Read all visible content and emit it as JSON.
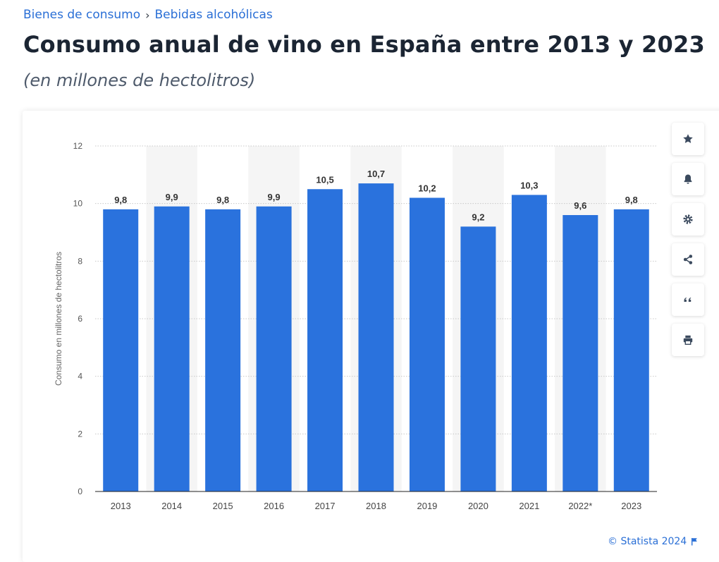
{
  "breadcrumb": {
    "items": [
      "Bienes de consumo",
      "Bebidas alcohólicas"
    ],
    "separator": "›"
  },
  "header": {
    "title": "Consumo anual de vino en España entre 2013 y 2023",
    "subtitle": "(en millones de hectolitros)"
  },
  "toolbar": {
    "icons": [
      "star-icon",
      "bell-icon",
      "gear-icon",
      "share-icon",
      "quote-icon",
      "print-icon"
    ]
  },
  "credit": {
    "text": "© Statista 2024"
  },
  "colors": {
    "bar": "#2a72dd",
    "band": "#f5f5f5",
    "link": "#2a6fd6",
    "title": "#1b2533",
    "axis_text": "#555555"
  },
  "chart_data": {
    "type": "bar",
    "categories": [
      "2013",
      "2014",
      "2015",
      "2016",
      "2017",
      "2018",
      "2019",
      "2020",
      "2021",
      "2022*",
      "2023"
    ],
    "values": [
      9.8,
      9.9,
      9.8,
      9.9,
      10.5,
      10.7,
      10.2,
      9.2,
      10.3,
      9.6,
      9.8
    ],
    "value_labels": [
      "9,8",
      "9,9",
      "9,8",
      "9,9",
      "10,5",
      "10,7",
      "10,2",
      "9,2",
      "10,3",
      "9,6",
      "9,8"
    ],
    "ylabel": "Consumo en millones de hectolitros",
    "ylim": [
      0,
      12
    ],
    "yticks": [
      0,
      2,
      4,
      6,
      8,
      10,
      12
    ],
    "grid": true
  }
}
